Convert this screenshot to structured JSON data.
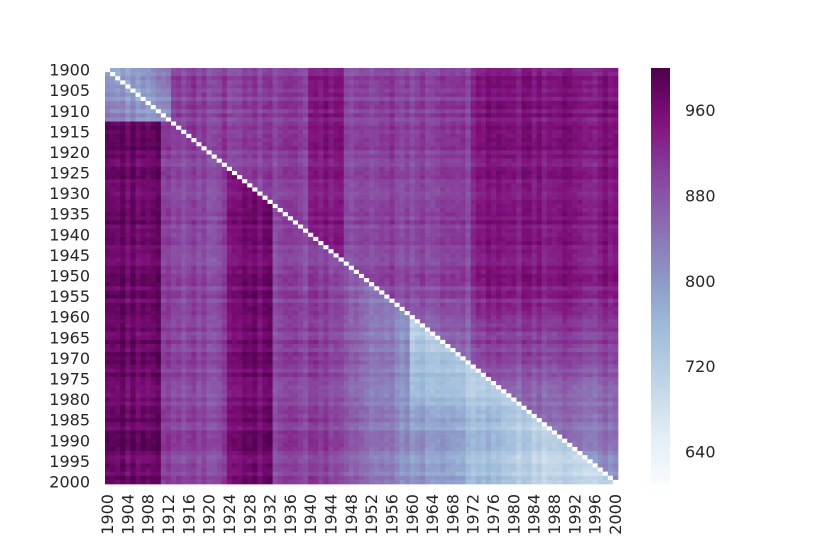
{
  "chart_data": {
    "type": "heatmap",
    "title": "",
    "xlabel": "",
    "ylabel": "",
    "x_range": [
      1900,
      2000
    ],
    "y_range": [
      1900,
      2000
    ],
    "step": 1,
    "x_tick_labels": [
      "1900",
      "1904",
      "1908",
      "1912",
      "1916",
      "1920",
      "1924",
      "1928",
      "1932",
      "1936",
      "1940",
      "1944",
      "1948",
      "1952",
      "1956",
      "1960",
      "1964",
      "1968",
      "1972",
      "1976",
      "1980",
      "1984",
      "1988",
      "1992",
      "1996",
      "2000"
    ],
    "y_tick_labels": [
      "1900",
      "1905",
      "1910",
      "1915",
      "1920",
      "1925",
      "1930",
      "1935",
      "1940",
      "1945",
      "1950",
      "1955",
      "1960",
      "1965",
      "1970",
      "1975",
      "1980",
      "1985",
      "1990",
      "1995",
      "2000"
    ],
    "diagonal": "blank",
    "value_range": [
      610,
      1000
    ],
    "colorbar": {
      "ticks": [
        "640",
        "720",
        "800",
        "880",
        "960"
      ],
      "tick_values": [
        640,
        720,
        800,
        880,
        960
      ],
      "colormap": "BuPu",
      "stops": [
        "#f7fcfd",
        "#e0ecf4",
        "#bfd3e6",
        "#9ebcda",
        "#8c96c6",
        "#8c6bb1",
        "#88419d",
        "#810f7c",
        "#4d004b"
      ]
    },
    "block_levels": {
      "upper_triangle": 900,
      "upper_right_band_1972_2000": 945,
      "column_band_1940_1946": 940,
      "lower_left_1900_1910": 975,
      "lower_band_1924_1932": 965,
      "near_diagonal_late_century": 720,
      "top_left_corner": 790
    }
  }
}
